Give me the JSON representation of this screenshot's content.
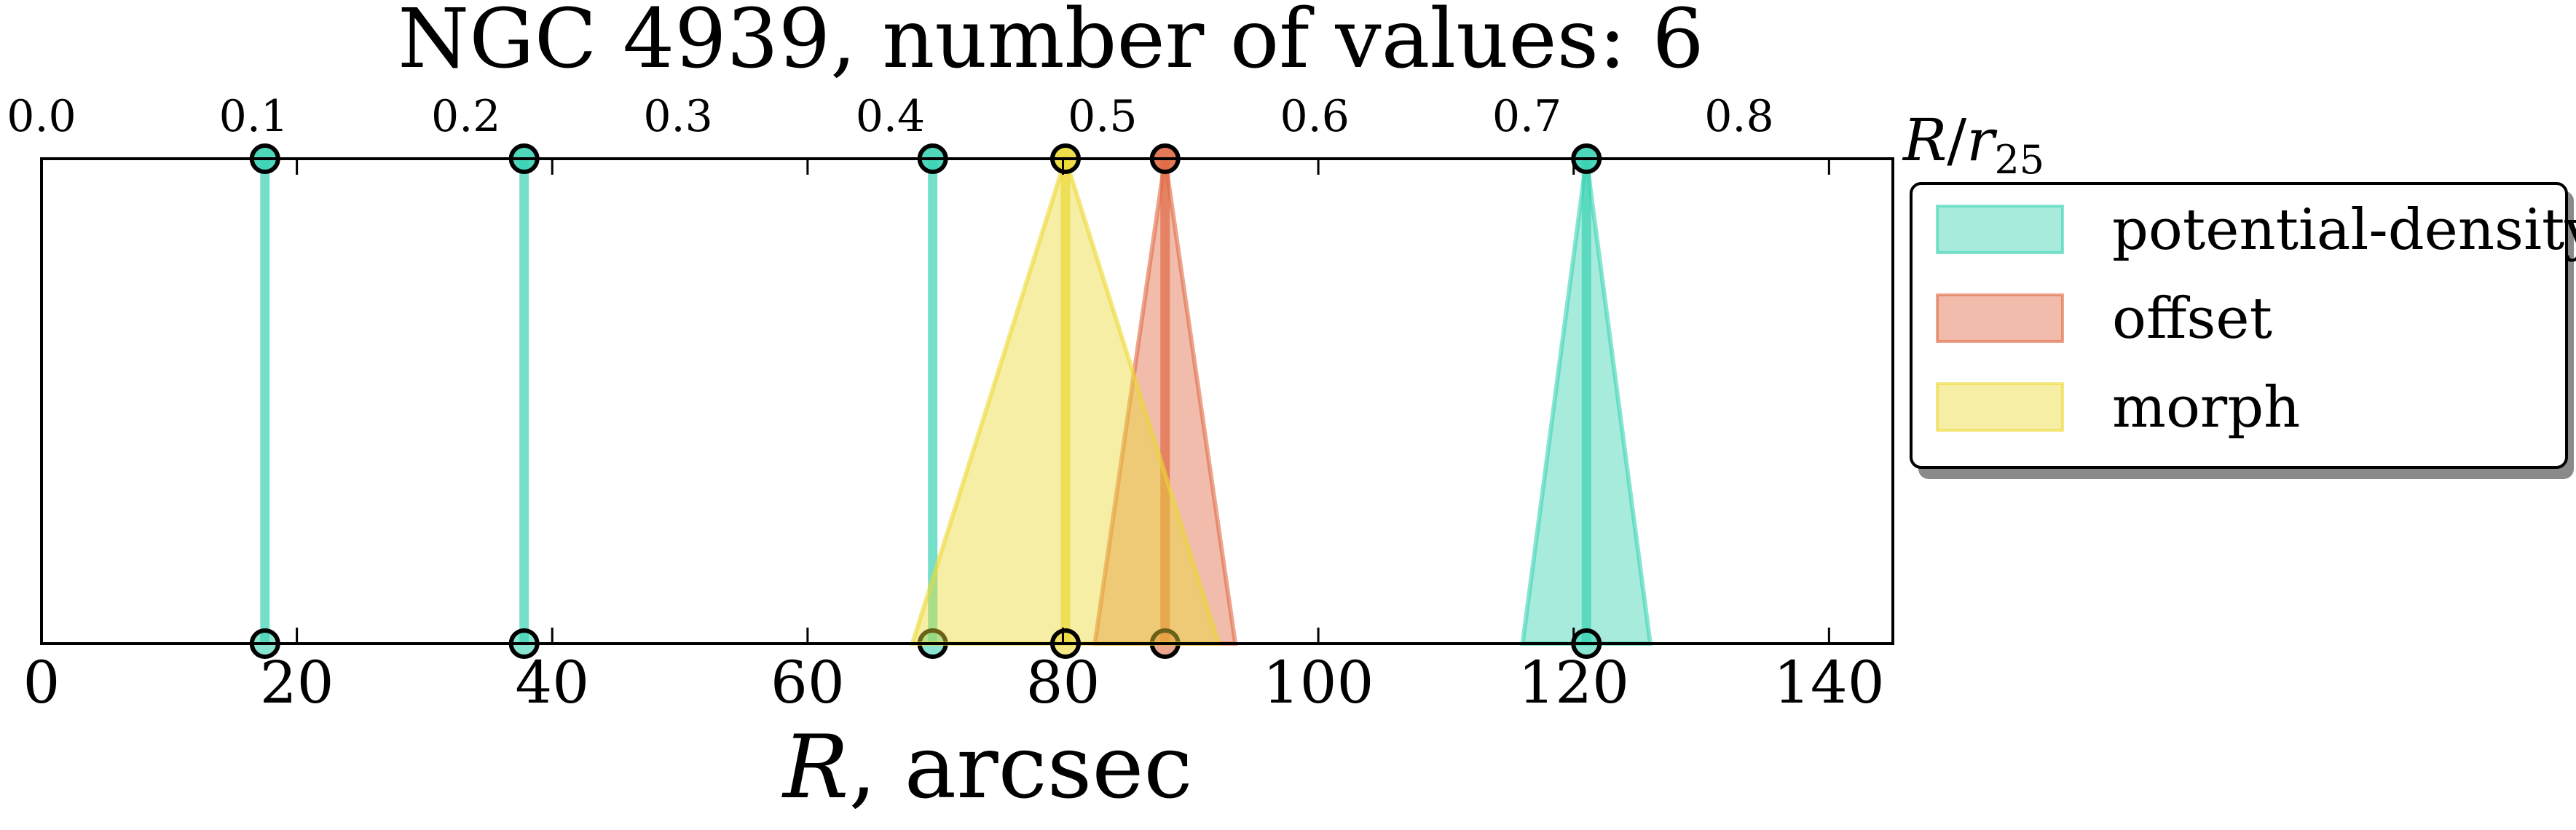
{
  "chart_data": {
    "type": "scatter",
    "title": "NGC 4939, number of values: 6",
    "xlabel": "R, arcsec",
    "xlabel_top": "R/r25",
    "xlim": [
      0,
      145
    ],
    "xticks": [
      0,
      20,
      40,
      60,
      80,
      100,
      120,
      140
    ],
    "xtick_labels": [
      "0",
      "20",
      "40",
      "60",
      "80",
      "100",
      "120",
      "140"
    ],
    "top_xticks": [
      0.0,
      0.1,
      0.2,
      0.3,
      0.4,
      0.5,
      0.6,
      0.7,
      0.8
    ],
    "top_xtick_labels": [
      "0.0",
      "0.1",
      "0.2",
      "0.3",
      "0.4",
      "0.5",
      "0.6",
      "0.7",
      "0.8"
    ],
    "r25_arcsec": 166.2,
    "legend_position": "right, outside plot",
    "series": [
      {
        "name": "potential-density",
        "color": "#3bd3b4",
        "values": [
          {
            "x": 17.5,
            "err": 0
          },
          {
            "x": 37.8,
            "err": 0
          },
          {
            "x": 69.8,
            "err": 0
          },
          {
            "x": 121.0,
            "err": 5
          }
        ]
      },
      {
        "name": "offset",
        "color": "#e06a45",
        "values": [
          {
            "x": 88.0,
            "err": 5.5
          }
        ]
      },
      {
        "name": "morph",
        "color": "#ecd936",
        "values": [
          {
            "x": 80.2,
            "err": 12
          }
        ]
      }
    ]
  }
}
